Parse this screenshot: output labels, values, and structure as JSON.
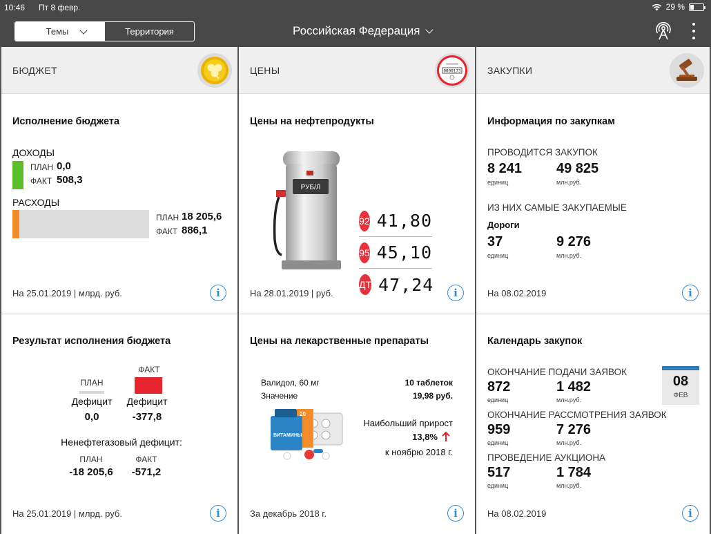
{
  "status": {
    "time": "10:46",
    "date": "Пт 8 февр.",
    "battery": "29 %",
    "battery_level": 0.29
  },
  "topbar": {
    "tab_topics": "Темы",
    "tab_territory": "Территория",
    "region": "Российская Федерация"
  },
  "columns": [
    {
      "title": "БЮДЖЕТ",
      "badge_icon": "clover-coin-icon",
      "top": {
        "title": "Исполнение бюджета",
        "income_label": "ДОХОДЫ",
        "income_plan_label": "ПЛАН",
        "income_plan": "0,0",
        "income_fact_label": "ФАКТ",
        "income_fact": "508,3",
        "expense_label": "РАСХОДЫ",
        "expense_plan_label": "ПЛАН",
        "expense_plan": "18 205,6",
        "expense_fact_label": "ФАКТ",
        "expense_fact": "886,1",
        "expense_progress": 0.049,
        "footer": "На 25.01.2019 | млрд. руб."
      },
      "bottom": {
        "title": "Результат исполнения бюджета",
        "plan_label": "ПЛАН",
        "fact_label": "ФАКТ",
        "plan_deficit_label": "Дефицит",
        "plan_deficit": "0,0",
        "fact_deficit_label": "Дефицит",
        "fact_deficit": "-377,8",
        "nonoil_label": "Ненефтегазовый дефицит:",
        "nonoil_plan_label": "ПЛАН",
        "nonoil_plan": "-18 205,6",
        "nonoil_fact_label": "ФАКТ",
        "nonoil_fact": "-571,2",
        "footer": "На 25.01.2019 | млрд. руб."
      }
    },
    {
      "title": "ЦЕНЫ",
      "badge_icon": "meter-stamp-icon",
      "top": {
        "title": "Цены на нефтепродукты",
        "pump_label": "РУБ/Л",
        "fuels": [
          {
            "grade": "92",
            "price": "41,80"
          },
          {
            "grade": "95",
            "price": "45,10"
          },
          {
            "grade": "ДТ",
            "price": "47,24"
          }
        ],
        "footer": "На 28.01.2019 | руб."
      },
      "bottom": {
        "title": "Цены на лекарственные препараты",
        "drug_name": "Валидол, 60 мг",
        "drug_pack": "10 таблеток",
        "value_label": "Значение",
        "value": "19,98 руб.",
        "growth_label": "Наибольший прирост",
        "growth": "13,8%",
        "growth_period": "к ноябрю 2018 г.",
        "box_text": "ВИТАМИНЫ",
        "box_count": "20",
        "footer": "За декабрь 2018 г."
      }
    },
    {
      "title": "ЗАКУПКИ",
      "badge_icon": "gavel-icon",
      "top": {
        "title": "Информация по закупкам",
        "ongoing_label": "ПРОВОДИТСЯ ЗАКУПОК",
        "ongoing_count": "8 241",
        "ongoing_count_unit": "единиц",
        "ongoing_sum": "49 825",
        "ongoing_sum_unit": "млн.руб.",
        "popular_label": "ИЗ НИХ САМЫЕ ЗАКУПАЕМЫЕ",
        "popular_category": "Дороги",
        "popular_count": "37",
        "popular_count_unit": "единиц",
        "popular_sum": "9 276",
        "popular_sum_unit": "млн.руб.",
        "footer": "На 08.02.2019"
      },
      "bottom": {
        "title": "Календарь закупок",
        "calendar_day": "08",
        "calendar_month": "ФЕВ",
        "rows": [
          {
            "label": "ОКОНЧАНИЕ ПОДАЧИ ЗАЯВОК",
            "count": "872",
            "count_unit": "единиц",
            "sum": "1 482",
            "sum_unit": "млн.руб."
          },
          {
            "label": "ОКОНЧАНИЕ РАССМОТРЕНИЯ ЗАЯВОК",
            "count": "959",
            "count_unit": "единиц",
            "sum": "7 276",
            "sum_unit": "млн.руб."
          },
          {
            "label": "ПРОВЕДЕНИЕ АУКЦИОНА",
            "count": "517",
            "count_unit": "единиц",
            "sum": "1 784",
            "sum_unit": "млн.руб."
          }
        ],
        "footer": "На 08.02.2019"
      }
    }
  ],
  "colors": {
    "income_bar": "#5cbf2a",
    "expense_bar": "#f28c28",
    "fact_red": "#e5242e",
    "fuel_red": "#e8303a",
    "info_blue": "#2f8bd6",
    "header_bg": "#474747"
  }
}
